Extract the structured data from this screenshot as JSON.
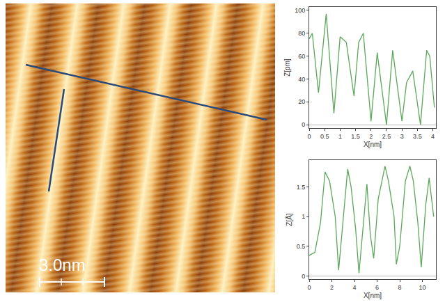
{
  "image": {
    "scale_bar": "3.0nm"
  },
  "chart_data": [
    {
      "type": "line",
      "x_label": "X[nm]",
      "y_label": "Z[pm]",
      "color": "#5aa85a",
      "x": [
        0,
        0.1,
        0.3,
        0.55,
        0.8,
        1.0,
        1.2,
        1.45,
        1.6,
        1.75,
        2.0,
        2.2,
        2.5,
        2.7,
        3.0,
        3.15,
        3.35,
        3.6,
        3.8,
        3.9,
        4.05
      ],
      "values": [
        75,
        80,
        28,
        97,
        10,
        77,
        72,
        25,
        72,
        80,
        3,
        63,
        0,
        65,
        3,
        37,
        47,
        0,
        65,
        60,
        15
      ],
      "xlim": [
        0,
        4.1
      ],
      "xticks": [
        0,
        0.5,
        1,
        1.5,
        2,
        2.5,
        3,
        3.5,
        4
      ],
      "ylim": [
        -3,
        103
      ],
      "yticks": [
        0,
        20,
        40,
        60,
        80,
        100
      ],
      "grid": false
    },
    {
      "type": "line",
      "x_label": "X[nm]",
      "y_label": "Z[Å]",
      "color": "#5aa85a",
      "x": [
        0,
        0.5,
        1.0,
        1.4,
        1.8,
        2.3,
        2.6,
        3.0,
        3.4,
        3.7,
        4.1,
        4.4,
        4.8,
        5.1,
        5.4,
        5.7,
        6.1,
        6.7,
        7.0,
        7.5,
        7.7,
        8.0,
        8.5,
        8.9,
        9.2,
        9.6,
        9.9,
        10.3,
        10.6,
        11.0
      ],
      "values": [
        0.35,
        0.4,
        0.9,
        1.75,
        1.6,
        1.0,
        0.1,
        1.0,
        1.8,
        1.5,
        0.8,
        0.05,
        0.9,
        1.55,
        0.7,
        0.3,
        1.3,
        1.85,
        1.6,
        1.0,
        0.2,
        0.5,
        1.6,
        1.85,
        1.6,
        0.9,
        0.15,
        1.2,
        1.65,
        1.0
      ],
      "xlim": [
        0,
        11.2
      ],
      "xticks": [
        0,
        2,
        4,
        6,
        8,
        10
      ],
      "ylim": [
        -0.05,
        1.95
      ],
      "yticks": [
        0,
        0.5,
        1,
        1.5
      ],
      "grid": false
    }
  ]
}
